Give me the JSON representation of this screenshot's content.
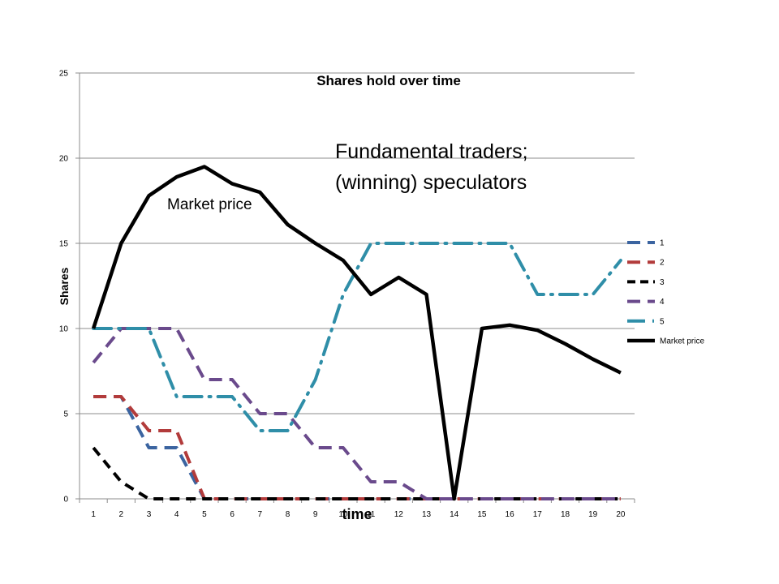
{
  "chart_data": {
    "type": "line",
    "title": "Shares hold over time",
    "xlabel": "time",
    "ylabel": "Shares",
    "x": [
      1,
      2,
      3,
      4,
      5,
      6,
      7,
      8,
      9,
      10,
      11,
      12,
      13,
      14,
      15,
      16,
      17,
      18,
      19,
      20
    ],
    "ylim": [
      0,
      25
    ],
    "yticks": [
      0,
      5,
      10,
      15,
      20,
      25
    ],
    "grid": "horizontal",
    "legend": "right",
    "series": [
      {
        "name": "1",
        "color": "#3b64a0",
        "dash": "long-dash",
        "values": [
          6,
          6,
          3,
          3,
          0,
          0,
          0,
          0,
          0,
          0,
          0,
          0,
          0,
          0,
          0,
          0,
          0,
          0,
          0,
          0
        ]
      },
      {
        "name": "2",
        "color": "#b23b3b",
        "dash": "long-dash",
        "values": [
          6,
          6,
          4,
          4,
          0,
          0,
          0,
          0,
          0,
          0,
          0,
          0,
          0,
          0,
          0,
          0,
          0,
          0,
          0,
          0
        ]
      },
      {
        "name": "3",
        "color": "#000000",
        "dash": "short-dash",
        "values": [
          3,
          1,
          0,
          0,
          0,
          0,
          0,
          0,
          0,
          0,
          0,
          0,
          0,
          0,
          0,
          0,
          0,
          0,
          0,
          0
        ]
      },
      {
        "name": "4",
        "color": "#6a4a8c",
        "dash": "long-dash",
        "values": [
          8,
          10,
          10,
          10,
          7,
          7,
          5,
          5,
          3,
          3,
          1,
          1,
          0,
          0,
          0,
          0,
          0,
          0,
          0,
          0
        ]
      },
      {
        "name": "5",
        "color": "#2f8ea8",
        "dash": "dash-dot",
        "values": [
          10,
          10,
          10,
          6,
          6,
          6,
          4,
          4,
          7,
          12,
          15,
          15,
          15,
          15,
          15,
          15,
          12,
          12,
          12,
          14
        ]
      },
      {
        "name": "Market price",
        "color": "#000000",
        "dash": "solid",
        "values": [
          10,
          15,
          17.8,
          18.9,
          19.5,
          18.5,
          18,
          16.1,
          15,
          14,
          12,
          13,
          12,
          0,
          10,
          10.2,
          9.9,
          9.1,
          8.2,
          7.4
        ]
      }
    ],
    "annotations": [
      {
        "text": "Market price"
      },
      {
        "text": "Fundamental traders;"
      },
      {
        "text": "(winning) speculators"
      }
    ]
  }
}
